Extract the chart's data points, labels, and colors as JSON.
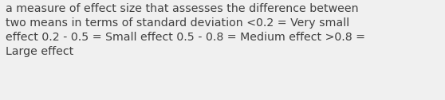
{
  "background_color": "#f0f0f0",
  "text_color": "#404040",
  "font_size": 10.2,
  "fig_width": 5.58,
  "fig_height": 1.26,
  "dpi": 100,
  "line1": "a measure of effect size that assesses the difference between",
  "line2": "two means in terms of standard deviation <0.2 = Very small",
  "line3": "effect 0.2 - 0.5 = Small effect 0.5 - 0.8 = Medium effect >0.8 =",
  "line4": "Large effect"
}
